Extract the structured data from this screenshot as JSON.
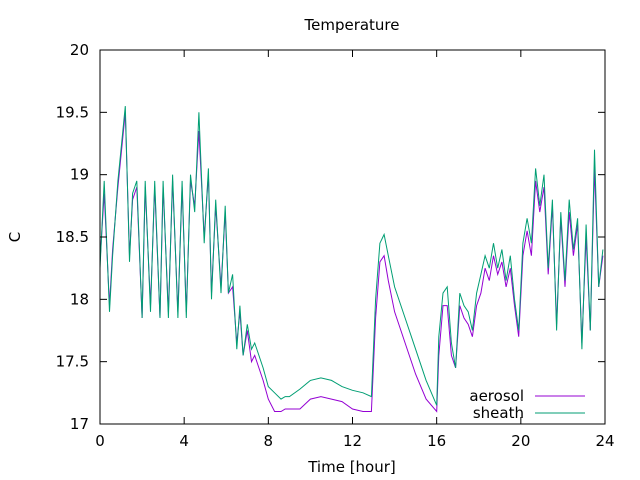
{
  "chart_data": {
    "type": "line",
    "title": "Temperature",
    "xlabel": "Time [hour]",
    "ylabel": "C",
    "xlim": [
      0,
      24
    ],
    "ylim": [
      17,
      20
    ],
    "xticks": [
      0,
      4,
      8,
      12,
      16,
      20,
      24
    ],
    "xtick_labels": [
      "0",
      "4",
      "8",
      "12",
      "16",
      "20",
      "24"
    ],
    "yticks": [
      17,
      17.5,
      18,
      18.5,
      19,
      19.5,
      20
    ],
    "ytick_labels": [
      "17",
      "17.5",
      "18",
      "18.5",
      "19",
      "19.5",
      "20"
    ],
    "grid": false,
    "legend_position": "bottom-right",
    "series": [
      {
        "name": "aerosol",
        "color": "#9400d3",
        "x": [
          0.0,
          0.2,
          0.45,
          0.6,
          0.85,
          1.2,
          1.4,
          1.55,
          1.75,
          2.0,
          2.15,
          2.4,
          2.6,
          2.85,
          3.0,
          3.25,
          3.45,
          3.7,
          3.9,
          4.1,
          4.3,
          4.5,
          4.7,
          4.95,
          5.15,
          5.3,
          5.5,
          5.75,
          5.95,
          6.1,
          6.3,
          6.5,
          6.65,
          6.8,
          7.0,
          7.2,
          7.35,
          7.55,
          7.75,
          8.0,
          8.3,
          8.6,
          8.8,
          9.0,
          9.5,
          10.0,
          10.5,
          11.0,
          11.5,
          12.0,
          12.5,
          12.9,
          13.1,
          13.3,
          13.5,
          13.7,
          14.0,
          14.5,
          15.0,
          15.5,
          16.0,
          16.1,
          16.3,
          16.5,
          16.7,
          16.9,
          17.1,
          17.3,
          17.5,
          17.7,
          17.9,
          18.1,
          18.3,
          18.5,
          18.7,
          18.9,
          19.1,
          19.3,
          19.5,
          19.7,
          19.9,
          20.1,
          20.3,
          20.5,
          20.7,
          20.9,
          21.1,
          21.3,
          21.5,
          21.7,
          21.9,
          22.1,
          22.3,
          22.5,
          22.7,
          22.9,
          23.1,
          23.3,
          23.5,
          23.7,
          23.9
        ],
        "y": [
          18.3,
          18.85,
          17.95,
          18.4,
          18.9,
          19.5,
          18.35,
          18.8,
          18.9,
          17.85,
          18.9,
          17.95,
          18.9,
          17.85,
          18.9,
          17.9,
          18.95,
          17.9,
          18.9,
          17.9,
          18.95,
          18.75,
          19.35,
          18.5,
          19.0,
          18.05,
          18.75,
          18.1,
          18.7,
          18.05,
          18.1,
          17.65,
          17.9,
          17.55,
          17.75,
          17.5,
          17.55,
          17.45,
          17.35,
          17.2,
          17.1,
          17.1,
          17.12,
          17.12,
          17.12,
          17.2,
          17.22,
          17.2,
          17.18,
          17.12,
          17.1,
          17.1,
          17.85,
          18.3,
          18.35,
          18.15,
          17.9,
          17.65,
          17.4,
          17.2,
          17.1,
          17.55,
          17.95,
          17.95,
          17.55,
          17.45,
          17.95,
          17.85,
          17.8,
          17.7,
          17.95,
          18.05,
          18.25,
          18.15,
          18.35,
          18.2,
          18.3,
          18.1,
          18.25,
          17.95,
          17.7,
          18.35,
          18.55,
          18.35,
          18.95,
          18.7,
          18.9,
          18.2,
          18.75,
          17.8,
          18.65,
          18.1,
          18.7,
          18.35,
          18.6,
          17.65,
          18.5,
          17.75,
          19.05,
          18.1,
          18.35
        ]
      },
      {
        "name": "sheath",
        "color": "#009e73",
        "x": [
          0.0,
          0.2,
          0.45,
          0.6,
          0.85,
          1.2,
          1.4,
          1.55,
          1.75,
          2.0,
          2.15,
          2.4,
          2.6,
          2.85,
          3.0,
          3.25,
          3.45,
          3.7,
          3.9,
          4.1,
          4.3,
          4.5,
          4.7,
          4.95,
          5.15,
          5.3,
          5.5,
          5.75,
          5.95,
          6.1,
          6.3,
          6.5,
          6.65,
          6.8,
          7.0,
          7.2,
          7.35,
          7.55,
          7.75,
          8.0,
          8.3,
          8.6,
          8.8,
          9.0,
          9.5,
          10.0,
          10.5,
          11.0,
          11.5,
          12.0,
          12.5,
          12.9,
          13.1,
          13.3,
          13.5,
          13.7,
          14.0,
          14.5,
          15.0,
          15.5,
          16.0,
          16.1,
          16.3,
          16.5,
          16.7,
          16.9,
          17.1,
          17.3,
          17.5,
          17.7,
          17.9,
          18.1,
          18.3,
          18.5,
          18.7,
          18.9,
          19.1,
          19.3,
          19.5,
          19.7,
          19.9,
          20.1,
          20.3,
          20.5,
          20.7,
          20.9,
          21.1,
          21.3,
          21.5,
          21.7,
          21.9,
          22.1,
          22.3,
          22.5,
          22.7,
          22.9,
          23.1,
          23.3,
          23.5,
          23.7,
          23.9
        ],
        "y": [
          18.25,
          18.95,
          17.9,
          18.35,
          18.95,
          19.55,
          18.3,
          18.85,
          18.95,
          17.85,
          18.95,
          17.9,
          18.95,
          17.85,
          18.95,
          17.85,
          19.0,
          17.85,
          18.95,
          17.85,
          19.0,
          18.7,
          19.5,
          18.45,
          19.05,
          18.0,
          18.8,
          18.05,
          18.75,
          18.05,
          18.2,
          17.6,
          17.95,
          17.55,
          17.8,
          17.6,
          17.65,
          17.55,
          17.45,
          17.3,
          17.25,
          17.2,
          17.22,
          17.22,
          17.28,
          17.35,
          17.37,
          17.35,
          17.3,
          17.27,
          17.25,
          17.22,
          18.0,
          18.45,
          18.52,
          18.35,
          18.1,
          17.85,
          17.6,
          17.35,
          17.15,
          17.7,
          18.05,
          18.1,
          17.65,
          17.45,
          18.05,
          17.95,
          17.9,
          17.75,
          18.05,
          18.2,
          18.35,
          18.25,
          18.45,
          18.25,
          18.4,
          18.15,
          18.35,
          18.0,
          17.75,
          18.45,
          18.65,
          18.45,
          19.05,
          18.75,
          19.0,
          18.25,
          18.8,
          17.75,
          18.7,
          18.15,
          18.8,
          18.4,
          18.65,
          17.6,
          18.6,
          17.75,
          19.2,
          18.1,
          18.4
        ]
      }
    ]
  }
}
